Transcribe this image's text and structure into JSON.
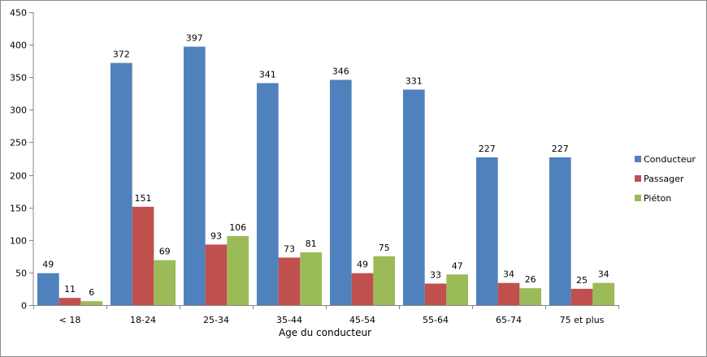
{
  "chart_data": {
    "type": "bar",
    "title": "",
    "xlabel": "Age du conducteur",
    "ylabel": "",
    "ylim": [
      0,
      450
    ],
    "yticks": [
      0,
      50,
      100,
      150,
      200,
      250,
      300,
      350,
      400,
      450
    ],
    "grid": false,
    "legend_position": "right",
    "categories": [
      "< 18",
      "18-24",
      "25-34",
      "35-44",
      "45-54",
      "55-64",
      "65-74",
      "75 et plus"
    ],
    "series": [
      {
        "name": "Conducteur",
        "color": "#4f81bd",
        "values": [
          49,
          372,
          397,
          341,
          346,
          331,
          227,
          227
        ]
      },
      {
        "name": "Passager",
        "color": "#c0504d",
        "values": [
          11,
          151,
          93,
          73,
          49,
          33,
          34,
          25
        ]
      },
      {
        "name": "Piéton",
        "color": "#9bbb59",
        "values": [
          6,
          69,
          106,
          81,
          75,
          47,
          26,
          34
        ]
      }
    ]
  }
}
